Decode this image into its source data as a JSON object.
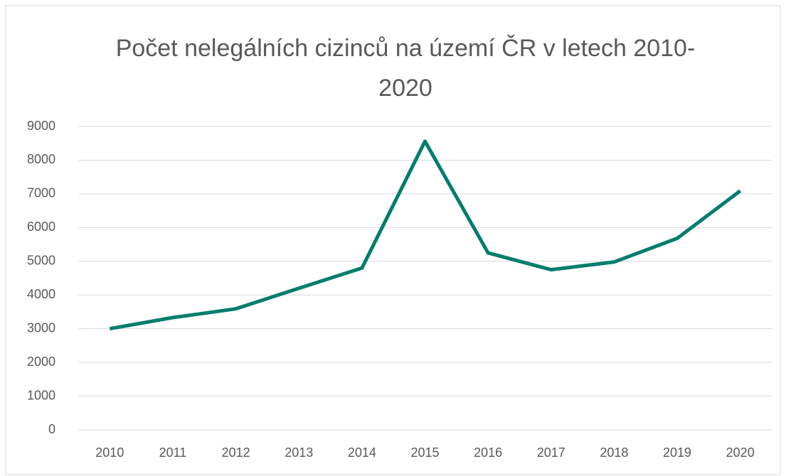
{
  "chart_data": {
    "type": "line",
    "title": "Počet nelegálních cizinců na území ČR v letech 2010-2020",
    "categories": [
      "2010",
      "2011",
      "2012",
      "2013",
      "2014",
      "2015",
      "2016",
      "2017",
      "2018",
      "2019",
      "2020"
    ],
    "series": [
      {
        "name": "Počet",
        "color": "#007d6c",
        "values": [
          3000,
          3330,
          3590,
          4200,
          4800,
          8560,
          5250,
          4750,
          4980,
          5680,
          7090
        ]
      }
    ],
    "ylim": [
      0,
      9000
    ],
    "yticks": [
      0,
      1000,
      2000,
      3000,
      4000,
      5000,
      6000,
      7000,
      8000,
      9000
    ],
    "grid": true
  }
}
